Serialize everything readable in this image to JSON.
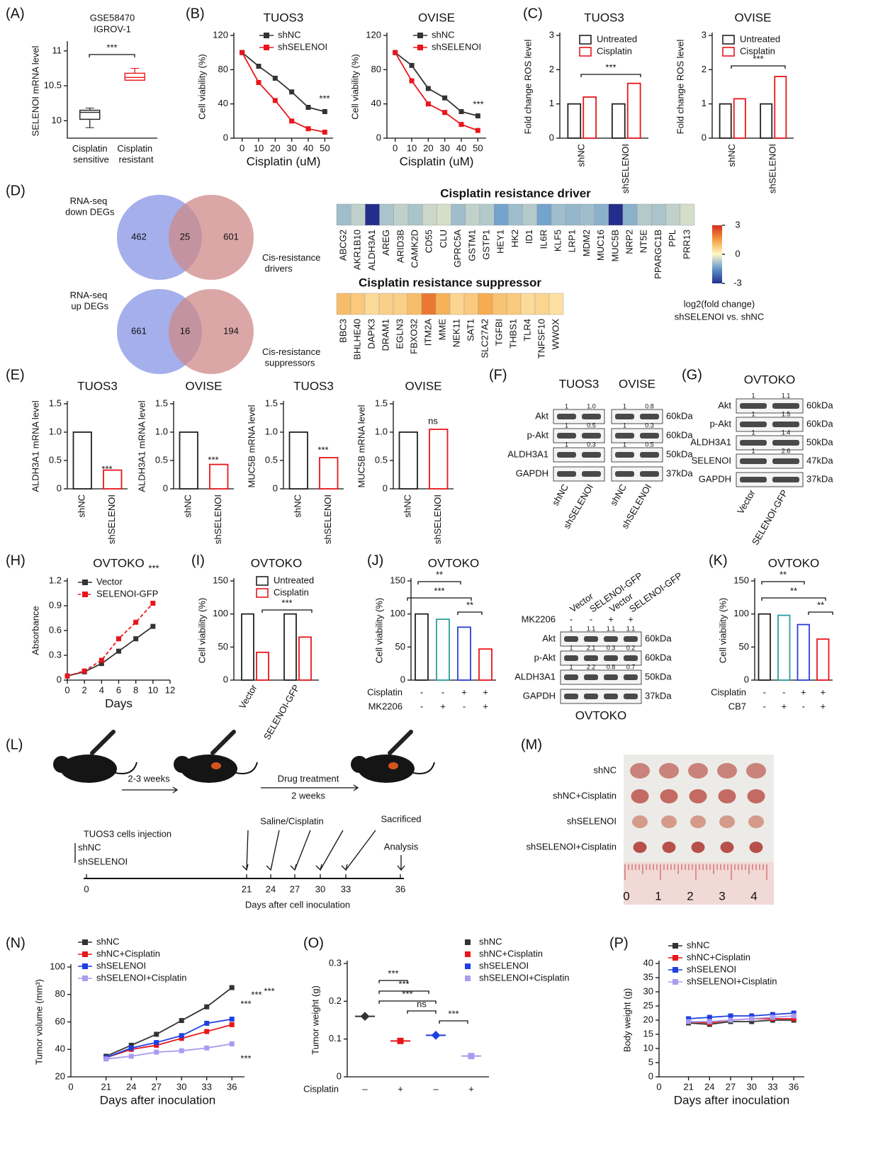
{
  "panel_labels": [
    "(A)",
    "(B)",
    "(C)",
    "(D)",
    "(E)",
    "(F)",
    "(G)",
    "(H)",
    "(I)",
    "(J)",
    "(K)",
    "(L)",
    "(M)",
    "(N)",
    "(O)",
    "(P)"
  ],
  "chart_data": [
    {
      "type": "box",
      "title": "GSE58470",
      "subtitle": "IGROV-1",
      "ylabel": "SELENOI mRNA level",
      "categories": [
        "Cisplatin sensitive",
        "Cisplatin resistant"
      ],
      "colors": [
        "#222222",
        "#e8161b"
      ],
      "boxes": [
        {
          "min": 9.9,
          "q1": 10.02,
          "median": 10.12,
          "q3": 10.15,
          "max": 10.18
        },
        {
          "min": 10.58,
          "q1": 10.58,
          "median": 10.62,
          "q3": 10.68,
          "max": 10.75
        }
      ],
      "ylim": [
        9.75,
        11.1
      ],
      "yticks": [
        10,
        10.5,
        11
      ],
      "annotations": [
        "***"
      ]
    },
    {
      "type": "line",
      "title": "TUOS3",
      "xlabel": "Cisplatin (uM)",
      "ylabel": "Cell viability (%)",
      "x": [
        0,
        10,
        20,
        30,
        40,
        50
      ],
      "xlim": [
        -5,
        55
      ],
      "xticks": [
        0,
        10,
        20,
        30,
        40,
        50
      ],
      "ylim": [
        0,
        120
      ],
      "yticks": [
        0,
        40,
        80,
        120
      ],
      "series": [
        {
          "name": "shNC",
          "color": "#333333",
          "values": [
            100,
            84,
            70,
            54,
            36,
            31
          ]
        },
        {
          "name": "shSELENOI",
          "color": "#e8161b",
          "values": [
            100,
            65,
            44,
            20,
            11,
            7
          ]
        }
      ],
      "annotations": [
        "***"
      ]
    },
    {
      "type": "line",
      "title": "OVISE",
      "xlabel": "Cisplatin (uM)",
      "ylabel": "Cell viability (%)",
      "x": [
        0,
        10,
        20,
        30,
        40,
        50
      ],
      "xlim": [
        -5,
        55
      ],
      "xticks": [
        0,
        10,
        20,
        30,
        40,
        50
      ],
      "ylim": [
        0,
        120
      ],
      "yticks": [
        0,
        40,
        80,
        120
      ],
      "series": [
        {
          "name": "shNC",
          "color": "#333333",
          "values": [
            100,
            85,
            58,
            47,
            31,
            26
          ]
        },
        {
          "name": "shSELENOI",
          "color": "#e8161b",
          "values": [
            100,
            67,
            40,
            30,
            16,
            9
          ]
        }
      ],
      "annotations": [
        "***"
      ]
    },
    {
      "type": "bar",
      "title": "TUOS3",
      "ylabel": "Fold change ROS level",
      "categories": [
        "shNC",
        "shSELENOI"
      ],
      "ylim": [
        0,
        3
      ],
      "yticks": [
        0,
        1,
        2,
        3
      ],
      "series": [
        {
          "name": "Untreated",
          "color": "#222222",
          "values": [
            1,
            1
          ]
        },
        {
          "name": "Cisplatin",
          "color": "#e8161b",
          "values": [
            1.2,
            1.6
          ]
        }
      ],
      "annotations": [
        "***"
      ]
    },
    {
      "type": "bar",
      "title": "OVISE",
      "ylabel": "Fold change ROS level",
      "categories": [
        "shNC",
        "shSELENOI"
      ],
      "ylim": [
        0,
        3
      ],
      "yticks": [
        0,
        1,
        2,
        3
      ],
      "series": [
        {
          "name": "Untreated",
          "color": "#222222",
          "values": [
            1,
            1
          ]
        },
        {
          "name": "Cisplatin",
          "color": "#e8161b",
          "values": [
            1.15,
            1.8
          ]
        }
      ],
      "annotations": [
        "***"
      ]
    },
    {
      "type": "heatmap",
      "title": "Cisplatin resistance driver",
      "categories": [
        "ABCG2",
        "AKR1B10",
        "ALDH3A1",
        "AREG",
        "ARID3B",
        "CAMK2D",
        "CD55",
        "CLU",
        "GPRC5A",
        "GSTM1",
        "GSTP1",
        "HEY1",
        "HK2",
        "ID1",
        "IL6R",
        "KLF5",
        "LRP1",
        "MDM2",
        "MUC16",
        "MUC5B",
        "NRP2",
        "NT5E",
        "PPARGC1B",
        "PPL",
        "PRR13"
      ],
      "values": [
        -0.9,
        -0.6,
        -3,
        -0.8,
        -0.6,
        -0.8,
        -0.5,
        -0.4,
        -0.9,
        -0.6,
        -0.7,
        -1.3,
        -0.9,
        -0.7,
        -1.3,
        -0.9,
        -1.0,
        -0.9,
        -1.1,
        -3,
        -1.1,
        -0.7,
        -0.8,
        -0.6,
        -0.4
      ],
      "zlim": [
        -3,
        3
      ],
      "zticks": [
        3,
        0,
        -3
      ],
      "colorbar_label": "log2(fold change)",
      "colorbar_sublabel": "shSELENOI vs. shNC"
    },
    {
      "type": "heatmap",
      "title": "Cisplatin resistance suppressor",
      "categories": [
        "BBC3",
        "BHLHE40",
        "DAPK3",
        "DRAM1",
        "EGLN3",
        "FBXO32",
        "ITM2A",
        "MME",
        "NEK11",
        "SAT1",
        "SLC27A2",
        "TGFBI",
        "THBS1",
        "TLR4",
        "TNFSF10",
        "WWOX"
      ],
      "values": [
        1.0,
        0.8,
        0.5,
        0.7,
        0.7,
        1.0,
        2.0,
        1.2,
        0.6,
        0.8,
        1.3,
        0.9,
        0.8,
        0.5,
        0.6,
        0.4
      ],
      "zlim": [
        -3,
        3
      ]
    },
    {
      "type": "bar",
      "title": "TUOS3",
      "ylabel": "ALDH3A1 mRNA level",
      "categories": [
        "shNC",
        "shSELENOI"
      ],
      "values": [
        1,
        0.33
      ],
      "colors": [
        "#222222",
        "#e8161b"
      ],
      "ylim": [
        0,
        1.5
      ],
      "yticks": [
        0,
        0.5,
        {
          "value": 1,
          "label": "1.0"
        },
        1.5
      ],
      "annotations": [
        "***"
      ]
    },
    {
      "type": "bar",
      "title": "OVISE",
      "ylabel": "ALDH3A1 mRNA level",
      "categories": [
        "shNC",
        "shSELENOI"
      ],
      "values": [
        1,
        0.43
      ],
      "colors": [
        "#222222",
        "#e8161b"
      ],
      "ylim": [
        0,
        1.5
      ],
      "yticks": [
        0,
        0.5,
        {
          "value": 1,
          "label": "1.0"
        },
        1.5
      ],
      "annotations": [
        "***"
      ]
    },
    {
      "type": "bar",
      "title": "TUOS3",
      "ylabel": "MUC5B mRNA level",
      "categories": [
        "shNC",
        "shSELENOI"
      ],
      "values": [
        1,
        0.55
      ],
      "colors": [
        "#222222",
        "#e8161b"
      ],
      "ylim": [
        0,
        1.5
      ],
      "yticks": [
        0,
        0.5,
        {
          "value": 1,
          "label": "1.0"
        },
        1.5
      ],
      "annotations": [
        "***"
      ]
    },
    {
      "type": "bar",
      "title": "OVISE",
      "ylabel": "MUC5B mRNA level",
      "categories": [
        "shNC",
        "shSELENOI"
      ],
      "values": [
        1,
        1.05
      ],
      "colors": [
        "#222222",
        "#e8161b"
      ],
      "ylim": [
        0,
        1.5
      ],
      "yticks": [
        0,
        0.5,
        {
          "value": 1,
          "label": "1.0"
        },
        1.5
      ],
      "annotations": [
        "ns"
      ]
    },
    {
      "type": "line",
      "title": "OVTOKO",
      "xlabel": "Days",
      "ylabel": "Absorbance",
      "x": [
        0,
        2,
        4,
        6,
        8,
        10
      ],
      "xlim": [
        0,
        12
      ],
      "xticks": [
        0,
        2,
        4,
        6,
        8,
        10,
        12
      ],
      "ylim": [
        0,
        1.2
      ],
      "yticks": [
        0,
        0.3,
        0.6,
        0.9,
        1.2
      ],
      "series": [
        {
          "name": "Vector",
          "color": "#333333",
          "values": [
            0.05,
            0.1,
            0.2,
            0.35,
            0.5,
            0.65
          ]
        },
        {
          "name": "SELENOI-GFP",
          "color": "#e8161b",
          "dashed": true,
          "values": [
            0.05,
            0.11,
            0.24,
            0.5,
            0.7,
            0.93
          ]
        }
      ],
      "annotations": [
        "***"
      ]
    },
    {
      "type": "bar",
      "title": "OVTOKO",
      "ylabel": "Cell viability (%)",
      "categories": [
        "Vector",
        "SELENOI-GFP"
      ],
      "ylim": [
        0,
        150
      ],
      "yticks": [
        0,
        50,
        100,
        150
      ],
      "series": [
        {
          "name": "Untreated",
          "color": "#222222",
          "values": [
            100,
            100
          ]
        },
        {
          "name": "Cisplatin",
          "color": "#e8161b",
          "values": [
            42,
            65
          ]
        }
      ],
      "annotations": [
        "***"
      ]
    },
    {
      "type": "bar",
      "title": "OVTOKO",
      "ylabel": "Cell viability (%)",
      "values": [
        100,
        92,
        80,
        47
      ],
      "colors": [
        "#222222",
        "#2a9d9d",
        "#2b3fd6",
        "#e8161b"
      ],
      "ylim": [
        0,
        150
      ],
      "yticks": [
        0,
        50,
        100,
        150
      ],
      "conditions": [
        {
          "name": "Cisplatin",
          "marks": [
            "-",
            "-",
            "+",
            "+"
          ]
        },
        {
          "name": "MK2206",
          "marks": [
            "-",
            "+",
            "-",
            "+"
          ]
        }
      ],
      "annotations": [
        "**",
        "***",
        "**"
      ]
    },
    {
      "type": "bar",
      "title": "OVTOKO",
      "ylabel": "Cell viability (%)",
      "values": [
        100,
        98,
        84,
        62
      ],
      "colors": [
        "#222222",
        "#2a9d9d",
        "#2b3fd6",
        "#e8161b"
      ],
      "ylim": [
        0,
        150
      ],
      "yticks": [
        0,
        50,
        100,
        150
      ],
      "conditions": [
        {
          "name": "Cisplatin",
          "marks": [
            "-",
            "-",
            "+",
            "+"
          ]
        },
        {
          "name": "CB7",
          "marks": [
            "-",
            "+",
            "-",
            "+"
          ]
        }
      ],
      "annotations": [
        "**",
        "**",
        "**"
      ]
    },
    {
      "type": "line",
      "xlabel": "Days after inoculation",
      "ylabel": "Tumor volume (mm³)",
      "x_origin_label": "0",
      "categories": [
        "21",
        "24",
        "27",
        "30",
        "33",
        "36"
      ],
      "ylim": [
        20,
        100
      ],
      "yticks": [
        20,
        40,
        60,
        80,
        100
      ],
      "series": [
        {
          "name": "shNC",
          "color": "#333333",
          "values": [
            35,
            43,
            51,
            61,
            71,
            85
          ]
        },
        {
          "name": "shNC+Cisplatin",
          "color": "#e8161b",
          "values": [
            34,
            40,
            43,
            48,
            53,
            58
          ]
        },
        {
          "name": "shSELENOI",
          "color": "#1f3fe0",
          "values": [
            34,
            41,
            45,
            50,
            59,
            62
          ]
        },
        {
          "name": "shSELENOI+Cisplatin",
          "color": "#a89cf0",
          "values": [
            33,
            35,
            38,
            39,
            41,
            44
          ]
        }
      ],
      "annotations": [
        "***",
        "***",
        "***",
        "***"
      ]
    },
    {
      "type": "dot",
      "ylabel": "Tumor weight (g)",
      "ylim": [
        0,
        0.3
      ],
      "yticks": [
        0,
        0.1,
        0.2,
        0.3
      ],
      "series": [
        {
          "name": "shNC",
          "color": "#333333",
          "values": [
            0.16
          ]
        },
        {
          "name": "shNC+Cisplatin",
          "color": "#e8161b",
          "values": [
            0.095
          ]
        },
        {
          "name": "shSELENOI",
          "color": "#1f3fe0",
          "values": [
            0.11
          ]
        },
        {
          "name": "shSELENOI+Cisplatin",
          "color": "#a89cf0",
          "values": [
            0.055
          ]
        }
      ],
      "conditions": [
        {
          "name": "Cisplatin",
          "marks": [
            "–",
            "+",
            "–",
            "+"
          ]
        }
      ],
      "annotations": [
        "***",
        "***",
        "***",
        "ns",
        "***"
      ]
    },
    {
      "type": "line",
      "xlabel": "Days after inoculation",
      "ylabel": "Body weight (g)",
      "x_origin_label": "0",
      "categories": [
        "21",
        "24",
        "27",
        "30",
        "33",
        "36"
      ],
      "ylim": [
        0,
        40
      ],
      "yticks": [
        0,
        5,
        10,
        15,
        20,
        25,
        30,
        35,
        40
      ],
      "series": [
        {
          "name": "shNC",
          "color": "#333333",
          "values": [
            19,
            18.5,
            19.5,
            19.5,
            20,
            20
          ]
        },
        {
          "name": "shNC+Cisplatin",
          "color": "#e8161b",
          "values": [
            19.5,
            19,
            20,
            20.5,
            20.5,
            20.5
          ]
        },
        {
          "name": "shSELENOI",
          "color": "#1f3fe0",
          "values": [
            20.5,
            21,
            21.5,
            21.5,
            22,
            22.5
          ]
        },
        {
          "name": "shSELENOI+Cisplatin",
          "color": "#a89cf0",
          "values": [
            19.5,
            19.5,
            20,
            20.5,
            21,
            21.5
          ]
        }
      ]
    }
  ],
  "venn": [
    {
      "left_label": "RNA-seq down DEGs",
      "right_label": "Cis-resistance drivers",
      "left": 462,
      "both": 25,
      "right": 601
    },
    {
      "left_label": "RNA-seq up DEGs",
      "right_label": "Cis-resistance suppressors",
      "left": 661,
      "both": 16,
      "right": 194
    }
  ],
  "blots": [
    {
      "headers": [
        "TUOS3",
        "OVISE"
      ],
      "lanes": [
        "shNC",
        "shSELENOI",
        "shNC",
        "shSELENOI"
      ],
      "rows": [
        {
          "name": "Akt",
          "size": "60kDa",
          "quant": [
            "1",
            "1.0",
            "1",
            "0.8"
          ]
        },
        {
          "name": "p-Akt",
          "size": "60kDa",
          "quant": [
            "1",
            "0.5",
            "1",
            "0.3"
          ]
        },
        {
          "name": "ALDH3A1",
          "size": "50kDa",
          "quant": [
            "1",
            "0.3",
            "1",
            "0.5"
          ]
        },
        {
          "name": "GAPDH",
          "size": "37kDa"
        }
      ]
    },
    {
      "headers": [
        "OVTOKO"
      ],
      "lanes": [
        "Vector",
        "SELENOI-GFP"
      ],
      "rows": [
        {
          "name": "Akt",
          "size": "60kDa",
          "quant": [
            "1",
            "1.1"
          ]
        },
        {
          "name": "p-Akt",
          "size": "60kDa",
          "quant": [
            "1",
            "1.5"
          ]
        },
        {
          "name": "ALDH3A1",
          "size": "50kDa",
          "quant": [
            "1",
            "1.4"
          ]
        },
        {
          "name": "SELENOI",
          "size": "47kDa",
          "quant": [
            "1",
            "2.6"
          ]
        },
        {
          "name": "GAPDH",
          "size": "37kDa"
        }
      ]
    },
    {
      "caption": "OVTOKO",
      "lanes": [
        "Vector",
        "SELENOI-GFP",
        "Vector",
        "SELENOI-GFP"
      ],
      "treatment": {
        "name": "MK2206",
        "marks": [
          "-",
          "-",
          "+",
          "+"
        ]
      },
      "rows": [
        {
          "name": "Akt",
          "size": "60kDa",
          "quant": [
            "1",
            "1.1",
            "1.1",
            "1.1"
          ]
        },
        {
          "name": "p-Akt",
          "size": "60kDa",
          "quant": [
            "1",
            "2.1",
            "0.3",
            "0.2"
          ]
        },
        {
          "name": "ALDH3A1",
          "size": "50kDa",
          "quant": [
            "1",
            "2.2",
            "0.8",
            "0.7"
          ]
        },
        {
          "name": "GAPDH",
          "size": "37kDa"
        }
      ]
    }
  ],
  "schematic": {
    "interval": "2-3 weeks",
    "treatment": "Drug treatment",
    "duration": "2 weeks",
    "injection": "TUOS3 cells injection",
    "groups": [
      "shNC",
      "shSELENOI"
    ],
    "drug": "Saline/Cisplatin",
    "end": "Sacrificed",
    "analysis": "Analysis",
    "days": [
      0,
      21,
      24,
      27,
      30,
      33,
      36
    ],
    "axis_label": "Days after cell inoculation"
  },
  "photo": {
    "rows": [
      "shNC",
      "shNC+Cisplatin",
      "shSELENOI",
      "shSELENOI+Cisplatin"
    ],
    "ruler": [
      0,
      1,
      2,
      3,
      4
    ]
  }
}
